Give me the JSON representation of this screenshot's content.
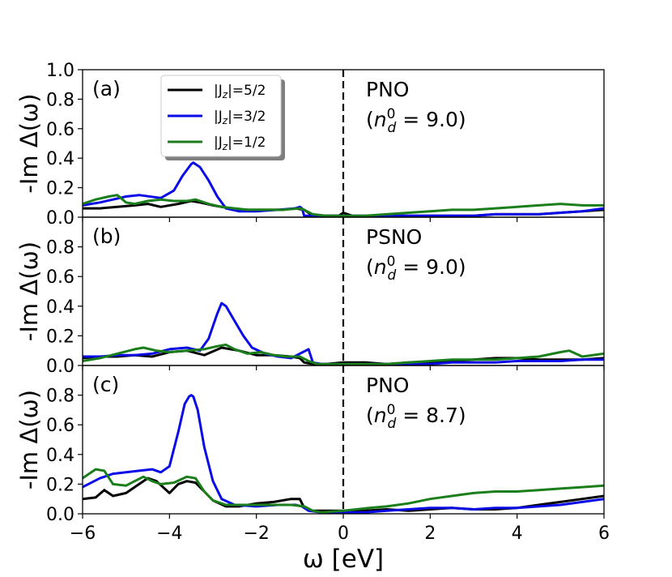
{
  "chart_data": {
    "type": "line",
    "xlabel": "ω [eV]",
    "ylabel": "-Im Δ(ω)",
    "xlim": [
      -6,
      6
    ],
    "xticks": [
      -6,
      -4,
      -2,
      0,
      2,
      4,
      6
    ],
    "xtick_labels": [
      "−6",
      "−4",
      "−2",
      "0",
      "2",
      "4",
      "6"
    ],
    "vline_x": 0,
    "colors": {
      "j52": "#000000",
      "j32": "#0a0ae6",
      "j12": "#1a7f1a"
    },
    "legend": {
      "placement": "top-left of panel (a)",
      "entries": [
        {
          "key": "j52",
          "label": "|J_z|=5/2",
          "main": "|J",
          "sub": "z",
          "rest": "|=5/2"
        },
        {
          "key": "j32",
          "label": "|J_z|=3/2",
          "main": "|J",
          "sub": "z",
          "rest": "|=3/2"
        },
        {
          "key": "j12",
          "label": "|J_z|=1/2",
          "main": "|J",
          "sub": "z",
          "rest": "|=1/2"
        }
      ]
    },
    "panels": [
      {
        "tag": "(a)",
        "material": "PNO",
        "nd_main": "n",
        "nd_sub": "d",
        "nd_sup": "0",
        "nd_value": " = 9.0)",
        "ylim": [
          0,
          1.0
        ],
        "yticks": [
          0,
          0.2,
          0.4,
          0.6,
          0.8,
          1.0
        ],
        "ytick_labels": [
          "0.0",
          "0.2",
          "0.4",
          "0.6",
          "0.8",
          "1.0"
        ],
        "series": [
          {
            "key": "j52",
            "name": "|J_z|=5/2",
            "x": [
              -6,
              -5.6,
              -5.2,
              -4.8,
              -4.5,
              -4.2,
              -3.8,
              -3.5,
              -3.3,
              -3.0,
              -2.6,
              -2.2,
              -1.8,
              -1.4,
              -1.1,
              -0.9,
              -0.7,
              -0.4,
              -0.1,
              0,
              0.2,
              0.5,
              1,
              1.5,
              2,
              2.5,
              3,
              3.5,
              4,
              4.5,
              5,
              5.5,
              6
            ],
            "y": [
              0.06,
              0.06,
              0.07,
              0.08,
              0.09,
              0.07,
              0.09,
              0.11,
              0.1,
              0.08,
              0.06,
              0.05,
              0.05,
              0.05,
              0.06,
              0.05,
              0.01,
              0.01,
              0.01,
              0.03,
              0.01,
              0.005,
              0.01,
              0.01,
              0.01,
              0.01,
              0.01,
              0.02,
              0.02,
              0.02,
              0.03,
              0.04,
              0.05
            ]
          },
          {
            "key": "j32",
            "name": "|J_z|=3/2",
            "x": [
              -6,
              -5.6,
              -5.3,
              -5.0,
              -4.7,
              -4.2,
              -3.9,
              -3.7,
              -3.5,
              -3.45,
              -3.3,
              -3.1,
              -2.9,
              -2.7,
              -2.4,
              -2.0,
              -1.5,
              -1.1,
              -1.0,
              -0.95,
              -0.9,
              -0.7,
              -0.4,
              0,
              0.5,
              1,
              1.5,
              2,
              2.5,
              3,
              3.5,
              4,
              4.5,
              5,
              5.5,
              6
            ],
            "y": [
              0.08,
              0.1,
              0.12,
              0.14,
              0.15,
              0.13,
              0.18,
              0.28,
              0.36,
              0.37,
              0.34,
              0.25,
              0.14,
              0.06,
              0.04,
              0.04,
              0.05,
              0.06,
              0.07,
              0.06,
              0.01,
              0.01,
              0.01,
              0.01,
              0.01,
              0.01,
              0.01,
              0.01,
              0.01,
              0.01,
              0.02,
              0.02,
              0.02,
              0.03,
              0.04,
              0.06
            ]
          },
          {
            "key": "j12",
            "name": "|J_z|=1/2",
            "x": [
              -6,
              -5.7,
              -5.4,
              -5.2,
              -5.0,
              -4.8,
              -4.5,
              -4.2,
              -3.9,
              -3.6,
              -3.4,
              -3.1,
              -2.8,
              -2.5,
              -2.2,
              -1.8,
              -1.4,
              -1.0,
              -0.9,
              -0.7,
              -0.4,
              0,
              0.5,
              1,
              1.5,
              2,
              2.5,
              3,
              3.5,
              4,
              4.5,
              5,
              5.5,
              6
            ],
            "y": [
              0.09,
              0.12,
              0.14,
              0.15,
              0.1,
              0.09,
              0.11,
              0.12,
              0.11,
              0.11,
              0.12,
              0.09,
              0.07,
              0.06,
              0.05,
              0.05,
              0.05,
              0.06,
              0.05,
              0.02,
              0.01,
              0.01,
              0.01,
              0.02,
              0.03,
              0.04,
              0.05,
              0.05,
              0.06,
              0.07,
              0.08,
              0.09,
              0.08,
              0.08
            ]
          }
        ]
      },
      {
        "tag": "(b)",
        "material": "PSNO",
        "nd_main": "n",
        "nd_sub": "d",
        "nd_sup": "0",
        "nd_value": " = 9.0)",
        "ylim": [
          0,
          1.0
        ],
        "yticks": [
          0,
          0.2,
          0.4,
          0.6,
          0.8
        ],
        "ytick_labels": [
          "0.0",
          "0.2",
          "0.4",
          "0.6",
          "0.8"
        ],
        "series": [
          {
            "key": "j52",
            "name": "|J_z|=5/2",
            "x": [
              -6,
              -5.6,
              -5.2,
              -4.8,
              -4.4,
              -4.0,
              -3.6,
              -3.2,
              -2.8,
              -2.4,
              -2.0,
              -1.6,
              -1.2,
              -1.0,
              -0.9,
              -0.7,
              -0.4,
              0,
              0.5,
              1,
              1.5,
              2,
              2.5,
              3,
              3.5,
              4,
              4.5,
              5,
              5.5,
              6
            ],
            "y": [
              0.05,
              0.06,
              0.06,
              0.07,
              0.06,
              0.09,
              0.1,
              0.07,
              0.12,
              0.1,
              0.07,
              0.07,
              0.06,
              0.05,
              0.02,
              0.01,
              0.01,
              0.02,
              0.02,
              0.01,
              0.02,
              0.02,
              0.03,
              0.04,
              0.05,
              0.05,
              0.04,
              0.04,
              0.04,
              0.05
            ]
          },
          {
            "key": "j32",
            "name": "|J_z|=3/2",
            "x": [
              -6,
              -5.6,
              -5.2,
              -4.8,
              -4.4,
              -4.0,
              -3.6,
              -3.3,
              -3.1,
              -2.9,
              -2.8,
              -2.7,
              -2.5,
              -2.3,
              -2.1,
              -1.8,
              -1.5,
              -1.2,
              -1.0,
              -0.8,
              -0.7,
              -0.5,
              -0.2,
              0,
              0.5,
              1,
              1.5,
              2,
              2.5,
              3,
              3.5,
              4,
              4.5,
              5,
              5.5,
              6
            ],
            "y": [
              0.06,
              0.06,
              0.07,
              0.07,
              0.08,
              0.11,
              0.12,
              0.1,
              0.18,
              0.35,
              0.42,
              0.4,
              0.3,
              0.2,
              0.12,
              0.08,
              0.06,
              0.05,
              0.08,
              0.11,
              0.02,
              0.01,
              0.01,
              0.01,
              0.01,
              0.01,
              0.01,
              0.01,
              0.02,
              0.02,
              0.02,
              0.03,
              0.03,
              0.03,
              0.04,
              0.04
            ]
          },
          {
            "key": "j12",
            "name": "|J_z|=1/2",
            "x": [
              -6,
              -5.6,
              -5.2,
              -4.8,
              -4.6,
              -4.3,
              -4.0,
              -3.6,
              -3.2,
              -2.9,
              -2.7,
              -2.5,
              -2.2,
              -1.9,
              -1.6,
              -1.3,
              -1.0,
              -0.8,
              -0.6,
              -0.3,
              0,
              0.5,
              1,
              1.5,
              2,
              2.5,
              3,
              3.5,
              4,
              4.5,
              5,
              5.2,
              5.5,
              6
            ],
            "y": [
              0.03,
              0.05,
              0.08,
              0.11,
              0.12,
              0.1,
              0.09,
              0.1,
              0.11,
              0.13,
              0.14,
              0.11,
              0.08,
              0.09,
              0.07,
              0.06,
              0.06,
              0.03,
              0.01,
              0.01,
              0.01,
              0.01,
              0.01,
              0.02,
              0.03,
              0.04,
              0.04,
              0.04,
              0.05,
              0.06,
              0.09,
              0.1,
              0.06,
              0.08
            ]
          }
        ]
      },
      {
        "tag": "(c)",
        "material": "PNO",
        "nd_main": "n",
        "nd_sub": "d",
        "nd_sup": "0",
        "nd_value": " = 8.7)",
        "ylim": [
          0,
          1.0
        ],
        "yticks": [
          0,
          0.2,
          0.4,
          0.6,
          0.8
        ],
        "ytick_labels": [
          "0.0",
          "0.2",
          "0.4",
          "0.6",
          "0.8"
        ],
        "series": [
          {
            "key": "j52",
            "name": "|J_z|=5/2",
            "x": [
              -6,
              -5.7,
              -5.5,
              -5.3,
              -5.0,
              -4.7,
              -4.5,
              -4.3,
              -4.0,
              -3.8,
              -3.6,
              -3.4,
              -3.2,
              -3.0,
              -2.7,
              -2.4,
              -2.0,
              -1.6,
              -1.2,
              -1.0,
              -0.9,
              -0.7,
              -0.5,
              -0.2,
              0,
              0.5,
              1,
              1.5,
              2,
              2.5,
              3,
              3.5,
              4,
              4.5,
              5,
              5.5,
              6
            ],
            "y": [
              0.1,
              0.11,
              0.16,
              0.12,
              0.14,
              0.2,
              0.24,
              0.22,
              0.14,
              0.2,
              0.22,
              0.21,
              0.15,
              0.09,
              0.05,
              0.05,
              0.07,
              0.08,
              0.1,
              0.1,
              0.04,
              0.02,
              0.02,
              0.02,
              0.02,
              0.02,
              0.03,
              0.02,
              0.03,
              0.04,
              0.03,
              0.03,
              0.04,
              0.06,
              0.08,
              0.1,
              0.12
            ]
          },
          {
            "key": "j32",
            "name": "|J_z|=3/2",
            "x": [
              -6,
              -5.6,
              -5.3,
              -5.0,
              -4.7,
              -4.4,
              -4.2,
              -4.0,
              -3.8,
              -3.65,
              -3.55,
              -3.5,
              -3.45,
              -3.35,
              -3.2,
              -3.0,
              -2.8,
              -2.5,
              -2.0,
              -1.5,
              -1.1,
              -0.95,
              -0.8,
              -0.5,
              0,
              0.5,
              1,
              1.5,
              2,
              2.5,
              3,
              3.5,
              4,
              4.5,
              5,
              5.5,
              6
            ],
            "y": [
              0.18,
              0.24,
              0.27,
              0.28,
              0.29,
              0.3,
              0.28,
              0.32,
              0.55,
              0.74,
              0.79,
              0.8,
              0.79,
              0.7,
              0.45,
              0.22,
              0.1,
              0.06,
              0.05,
              0.06,
              0.06,
              0.05,
              0.02,
              0.01,
              0.01,
              0.01,
              0.02,
              0.03,
              0.04,
              0.04,
              0.03,
              0.04,
              0.04,
              0.05,
              0.06,
              0.08,
              0.1
            ]
          },
          {
            "key": "j12",
            "name": "|J_z|=1/2",
            "x": [
              -6,
              -5.7,
              -5.5,
              -5.3,
              -5.0,
              -4.8,
              -4.6,
              -4.4,
              -4.2,
              -3.9,
              -3.6,
              -3.4,
              -3.2,
              -3.0,
              -2.7,
              -2.4,
              -2.0,
              -1.6,
              -1.2,
              -0.9,
              -0.7,
              -0.5,
              0,
              0.3,
              0.6,
              1,
              1.5,
              2,
              2.5,
              3,
              3.5,
              4,
              4.5,
              5,
              5.5,
              6
            ],
            "y": [
              0.24,
              0.3,
              0.29,
              0.2,
              0.19,
              0.22,
              0.25,
              0.22,
              0.2,
              0.21,
              0.25,
              0.24,
              0.15,
              0.09,
              0.06,
              0.06,
              0.06,
              0.06,
              0.06,
              0.05,
              0.02,
              0.01,
              0.02,
              0.03,
              0.04,
              0.05,
              0.07,
              0.1,
              0.12,
              0.14,
              0.15,
              0.15,
              0.16,
              0.17,
              0.18,
              0.19
            ]
          }
        ]
      }
    ]
  }
}
